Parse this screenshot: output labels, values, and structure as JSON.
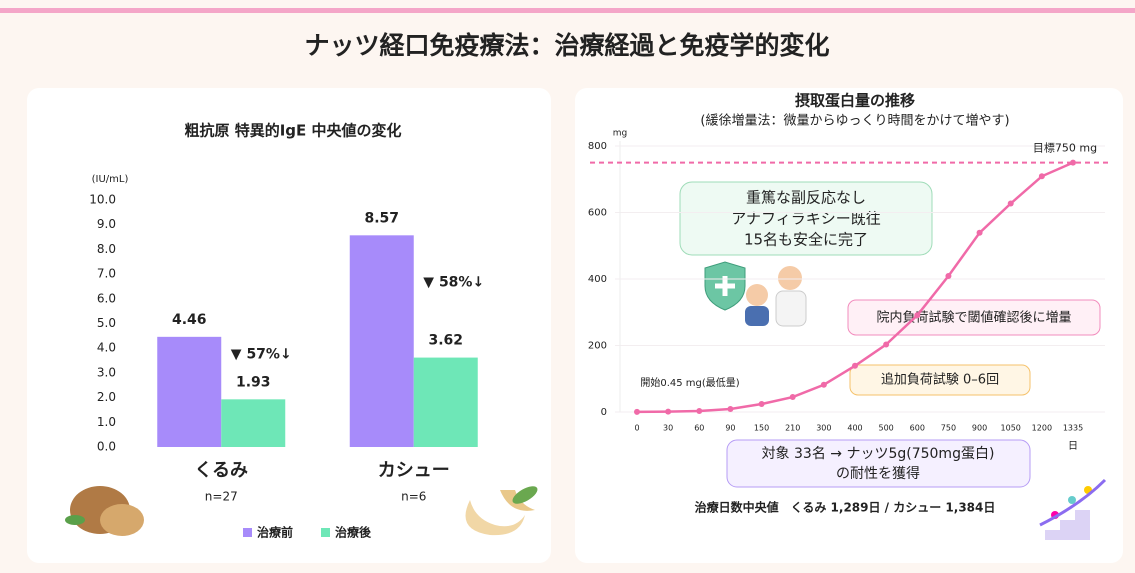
{
  "title": "ナッツ経口免疫療法：治療経過と免疫学的変化",
  "chart_data": [
    {
      "type": "bar",
      "title": "粗抗原 特異的IgE 中央値の変化",
      "y_unit": "(IU/mL)",
      "categories": [
        "くるみ",
        "カシュー"
      ],
      "category_notes": [
        "n=27",
        "n=6"
      ],
      "series": [
        {
          "name": "治療前",
          "color": "#a78bfa",
          "values": [
            4.46,
            8.57
          ]
        },
        {
          "name": "治療後",
          "color": "#6ee7b7",
          "values": [
            1.93,
            3.62
          ]
        }
      ],
      "change_labels": [
        "▼ 57%↓",
        "▼ 58%↓"
      ],
      "ylim": [
        0,
        10
      ],
      "yticks": [
        {
          "value": 0,
          "label": "0.0"
        },
        {
          "value": 1,
          "label": "1.0"
        },
        {
          "value": 2,
          "label": "2.0"
        },
        {
          "value": 3,
          "label": "3.0"
        },
        {
          "value": 4,
          "label": "4.0"
        },
        {
          "value": 5,
          "label": "5.0"
        },
        {
          "value": 6,
          "label": "6.0"
        },
        {
          "value": 7,
          "label": "7.0"
        },
        {
          "value": 8,
          "label": "8.0"
        },
        {
          "value": 9,
          "label": "9.0"
        },
        {
          "value": 10,
          "label": "10.0"
        }
      ],
      "grid": false,
      "legend": "bottom"
    },
    {
      "type": "line",
      "title": "摂取蛋白量の推移",
      "subtitle": "(緩徐増量法：微量からゆっくり時間をかけて増やす)",
      "y_unit": "mg",
      "x_unit": "日",
      "categories": [
        "0",
        "30",
        "60",
        "90",
        "150",
        "210",
        "300",
        "400",
        "500",
        "600",
        "750",
        "900",
        "1050",
        "1200",
        "1335"
      ],
      "series": [
        {
          "color": "#f06aa8",
          "values": [
            0.45,
            1,
            3,
            9,
            24,
            45,
            82,
            139,
            203,
            291,
            409,
            539,
            627,
            709,
            750
          ]
        }
      ],
      "ylim": [
        0,
        800
      ],
      "yticks": [
        0,
        200,
        400,
        600,
        800
      ],
      "grid": true,
      "target": {
        "value": 750,
        "label": "目標750 mg"
      },
      "annotations": {
        "start": "開始0.45 mg(最低量)",
        "safety": [
          "重篤な副反応なし",
          "アナフィラキシー既往",
          "15名も安全に完了"
        ],
        "escalation": "院内負荷試験で閾値確認後に増量",
        "challenges": "追加負荷試験 0–6回",
        "outcome": [
          "対象 33名 → ナッツ5g(750mg蛋白)",
          "の耐性を獲得"
        ],
        "duration": "治療日数中央値　くるみ 1,289日 / カシュー 1,384日"
      }
    }
  ]
}
